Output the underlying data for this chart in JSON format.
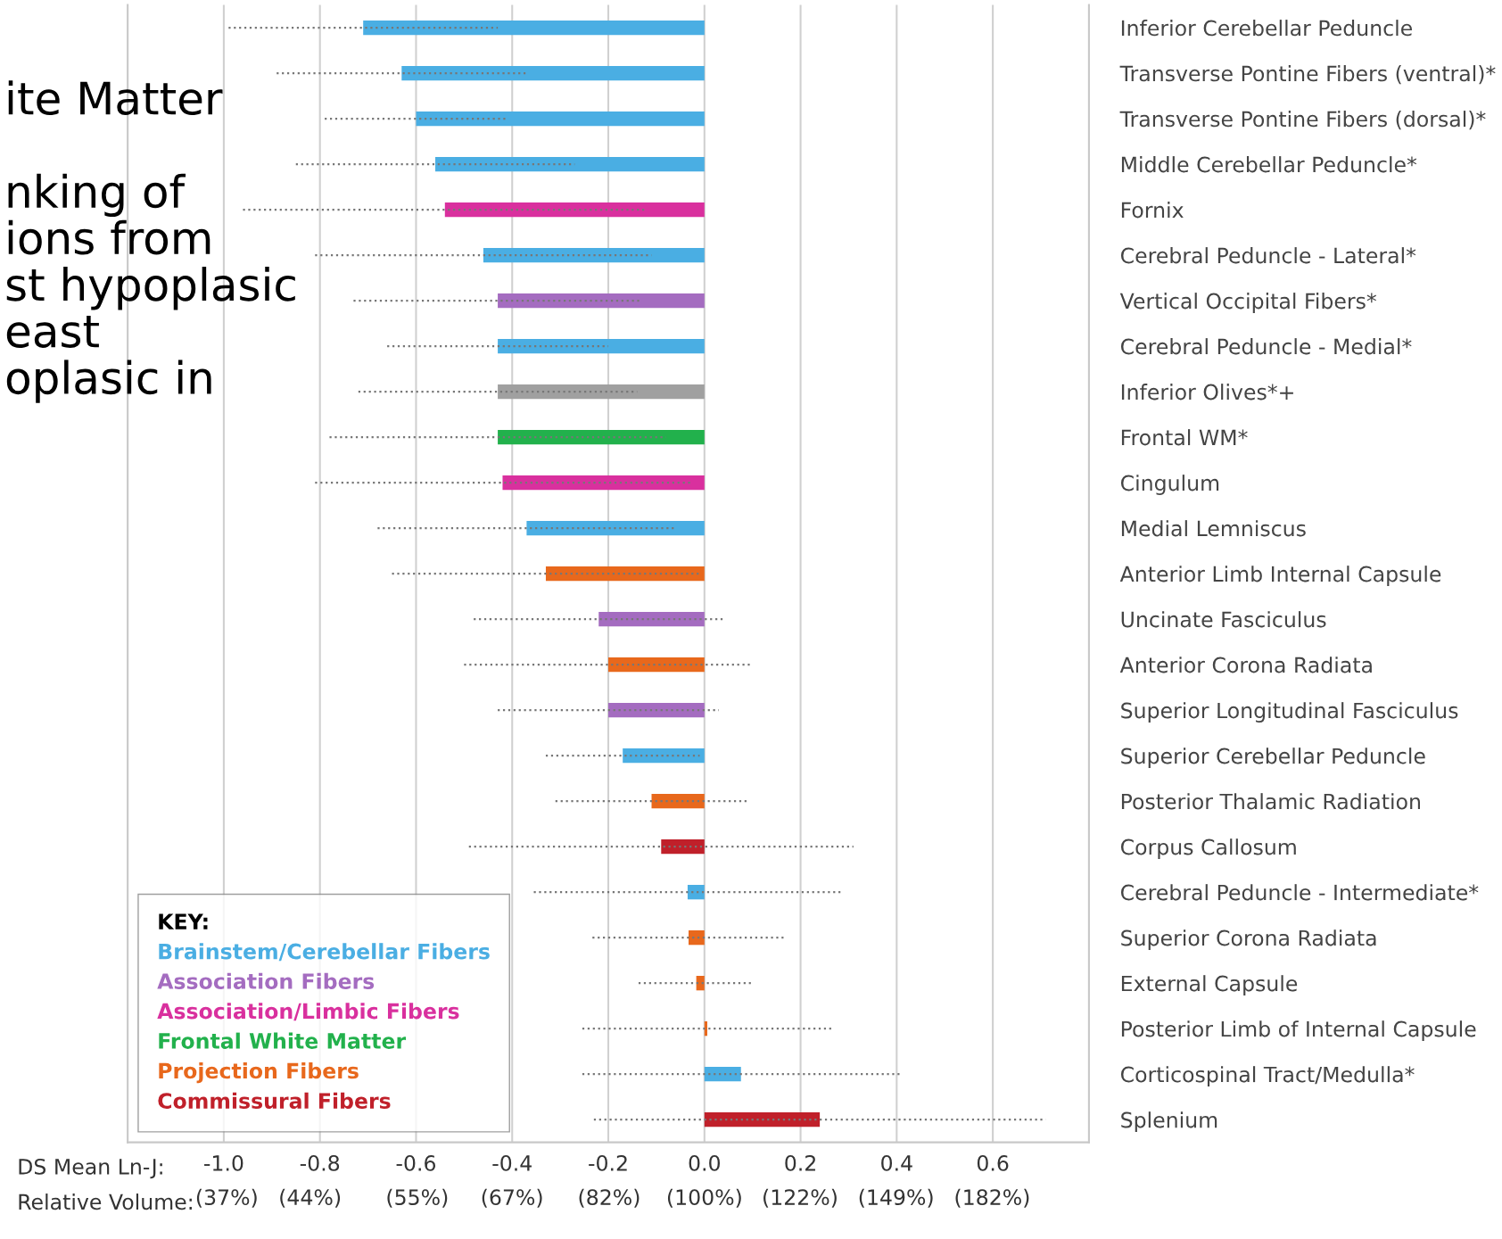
{
  "chart_data": {
    "type": "bar",
    "orientation": "horizontal",
    "categories": [
      "Inferior Cerebellar Peduncle",
      "Transverse Pontine Fibers (ventral)*",
      "Transverse Pontine Fibers (dorsal)*",
      "Middle Cerebellar Peduncle*",
      "Fornix",
      "Cerebral Peduncle - Lateral*",
      "Vertical Occipital Fibers*",
      "Cerebral Peduncle - Medial*",
      "Inferior Olives*+",
      "Frontal WM*",
      "Cingulum",
      "Medial Lemniscus",
      "Anterior Limb Internal Capsule",
      "Uncinate Fasciculus",
      "Anterior Corona Radiata",
      "Superior Longitudinal Fasciculus",
      "Superior Cerebellar Peduncle",
      "Posterior Thalamic Radiation",
      "Corpus Callosum",
      "Cerebral Peduncle - Intermediate*",
      "Superior Corona Radiata",
      "External Capsule",
      "Posterior Limb of Internal Capsule",
      "Corticospinal Tract/Medulla*",
      "Splenium"
    ],
    "series": [
      {
        "name": "Brainstem/Cerebellar Fibers",
        "color": "#4aaee3",
        "values": [
          -0.71,
          -0.63,
          -0.6,
          -0.56,
          null,
          -0.46,
          null,
          -0.43,
          null,
          null,
          null,
          -0.37,
          null,
          null,
          null,
          null,
          -0.17,
          null,
          null,
          -0.035,
          null,
          null,
          null,
          0.076,
          null
        ],
        "errors": [
          0.28,
          0.26,
          0.19,
          0.29,
          null,
          0.35,
          null,
          0.23,
          null,
          null,
          null,
          0.31,
          null,
          null,
          null,
          null,
          0.16,
          null,
          null,
          0.32,
          null,
          null,
          null,
          0.33,
          null
        ]
      },
      {
        "name": "Association Fibers",
        "color": "#a46cc0",
        "values": [
          null,
          null,
          null,
          null,
          null,
          null,
          -0.43,
          null,
          null,
          null,
          null,
          null,
          null,
          -0.22,
          null,
          -0.2,
          null,
          null,
          null,
          null,
          null,
          null,
          null,
          null,
          null
        ],
        "errors": [
          null,
          null,
          null,
          null,
          null,
          null,
          0.3,
          null,
          null,
          null,
          null,
          null,
          null,
          0.26,
          null,
          0.23,
          null,
          null,
          null,
          null,
          null,
          null,
          null,
          null,
          null
        ]
      },
      {
        "name": "Association/Limbic Fibers",
        "color": "#d9309e",
        "values": [
          null,
          null,
          null,
          null,
          -0.54,
          null,
          null,
          null,
          null,
          null,
          -0.42,
          null,
          null,
          null,
          null,
          null,
          null,
          null,
          null,
          null,
          null,
          null,
          null,
          null,
          null
        ],
        "errors": [
          null,
          null,
          null,
          null,
          0.42,
          null,
          null,
          null,
          null,
          null,
          0.39,
          null,
          null,
          null,
          null,
          null,
          null,
          null,
          null,
          null,
          null,
          null,
          null,
          null,
          null
        ]
      },
      {
        "name": "Frontal White Matter",
        "color": "#22b14c",
        "values": [
          null,
          null,
          null,
          null,
          null,
          null,
          null,
          null,
          null,
          -0.43,
          null,
          null,
          null,
          null,
          null,
          null,
          null,
          null,
          null,
          null,
          null,
          null,
          null,
          null,
          null
        ],
        "errors": [
          null,
          null,
          null,
          null,
          null,
          null,
          null,
          null,
          null,
          0.35,
          null,
          null,
          null,
          null,
          null,
          null,
          null,
          null,
          null,
          null,
          null,
          null,
          null,
          null,
          null
        ]
      },
      {
        "name": "Projection Fibers",
        "color": "#e8681c",
        "values": [
          null,
          null,
          null,
          null,
          null,
          null,
          null,
          null,
          null,
          null,
          null,
          null,
          -0.33,
          null,
          -0.2,
          null,
          null,
          -0.11,
          null,
          null,
          -0.033,
          -0.017,
          0.006,
          null,
          null
        ],
        "errors": [
          null,
          null,
          null,
          null,
          null,
          null,
          null,
          null,
          null,
          null,
          null,
          null,
          0.32,
          null,
          0.3,
          null,
          null,
          0.2,
          null,
          null,
          0.2,
          0.12,
          0.26,
          null,
          null
        ]
      },
      {
        "name": "Commissural Fibers",
        "color": "#c0202a",
        "values": [
          null,
          null,
          null,
          null,
          null,
          null,
          null,
          null,
          null,
          null,
          null,
          null,
          null,
          null,
          null,
          null,
          null,
          null,
          -0.09,
          null,
          null,
          null,
          null,
          null,
          0.24
        ],
        "errors": [
          null,
          null,
          null,
          null,
          null,
          null,
          null,
          null,
          null,
          null,
          null,
          null,
          null,
          null,
          null,
          null,
          null,
          null,
          0.4,
          null,
          null,
          null,
          null,
          null,
          0.47
        ]
      },
      {
        "color": "#a0a0a0",
        "values": [
          null,
          null,
          null,
          null,
          null,
          null,
          null,
          null,
          -0.43,
          null,
          null,
          null,
          null,
          null,
          null,
          null,
          null,
          null,
          null,
          null,
          null,
          null,
          null,
          null,
          null
        ],
        "errors": [
          null,
          null,
          null,
          null,
          null,
          null,
          null,
          null,
          0.29,
          null,
          null,
          null,
          null,
          null,
          null,
          null,
          null,
          null,
          null,
          null,
          null,
          null,
          null,
          null,
          null
        ]
      }
    ],
    "xlim": [
      -1.2,
      0.8
    ],
    "xticks": [
      {
        "value": -1.0,
        "label": "-1.0"
      },
      {
        "value": -0.8,
        "label": "-0.8"
      },
      {
        "value": -0.6,
        "label": "-0.6"
      },
      {
        "value": -0.4,
        "label": "-0.4"
      },
      {
        "value": -0.2,
        "label": "-0.2"
      },
      {
        "value": 0.0,
        "label": "0.0"
      },
      0.2,
      0.4,
      0.6
    ],
    "log": "x2",
    "x2lim": [
      30.1,
      222.6
    ],
    "x2ticks": [
      {
        "value": 37,
        "label": "(37%)"
      },
      {
        "value": 44,
        "label": "(44%)"
      },
      {
        "value": 55,
        "label": "(55%)"
      },
      {
        "value": 67,
        "label": "(67%)"
      },
      {
        "value": 82,
        "label": "(82%)"
      },
      {
        "value": 100,
        "label": "(100%)"
      },
      {
        "value": 122,
        "label": "(122%)"
      },
      {
        "value": 149,
        "label": "(149%)"
      },
      {
        "value": 182,
        "label": "(182%)"
      }
    ],
    "xlabel": "DS Mean Ln-J:",
    "x2label": "Relative Volume:",
    "legend_title": "KEY:",
    "legend": "bottom left",
    "grid": "x",
    "line_style": "dotted",
    "annotations": [
      "ite Matter\n\nnking of\nions from\nst hypoplasic\neast\noplasic in"
    ]
  }
}
